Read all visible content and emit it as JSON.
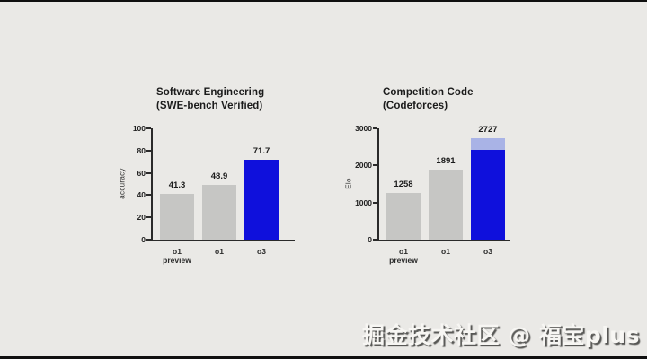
{
  "colors": {
    "background": "#eae9e6",
    "bar_gray": "#c6c6c4",
    "accent_blue": "#0f10dc",
    "accent_light_blue": "#a9b3e6",
    "axis": "#2a2a2a"
  },
  "watermark": {
    "text": "掘金技术社区 @ 福宝plus"
  },
  "chart_data": [
    {
      "type": "bar",
      "title": "Software Engineering",
      "subtitle": "(SWE-bench Verified)",
      "xlabel": "",
      "ylabel": "accuracy",
      "ylim": [
        0,
        100
      ],
      "yticks": [
        0,
        20,
        40,
        60,
        80,
        100
      ],
      "grid": false,
      "legend": "none",
      "categories": [
        "o1 preview",
        "o1",
        "o3"
      ],
      "values": [
        41.3,
        48.9,
        71.7
      ],
      "bar_colors": [
        "#c6c6c4",
        "#c6c6c4",
        "#0f10dc"
      ],
      "bar_segments": [
        null,
        null,
        null
      ]
    },
    {
      "type": "bar",
      "title": "Competition Code",
      "subtitle": "(Codeforces)",
      "xlabel": "",
      "ylabel": "Elo",
      "ylim": [
        0,
        3000
      ],
      "yticks": [
        0,
        1000,
        2000,
        3000
      ],
      "grid": false,
      "legend": "none",
      "categories": [
        "o1 preview",
        "o1",
        "o3"
      ],
      "values": [
        1258,
        1891,
        2727
      ],
      "bar_colors": [
        "#c6c6c4",
        "#c6c6c4",
        "#0f10dc"
      ],
      "bar_segments": [
        null,
        null,
        [
          {
            "to": 2430,
            "color": "#0f10dc"
          },
          {
            "to": 2727,
            "color": "#a9b3e6"
          }
        ]
      ]
    }
  ]
}
